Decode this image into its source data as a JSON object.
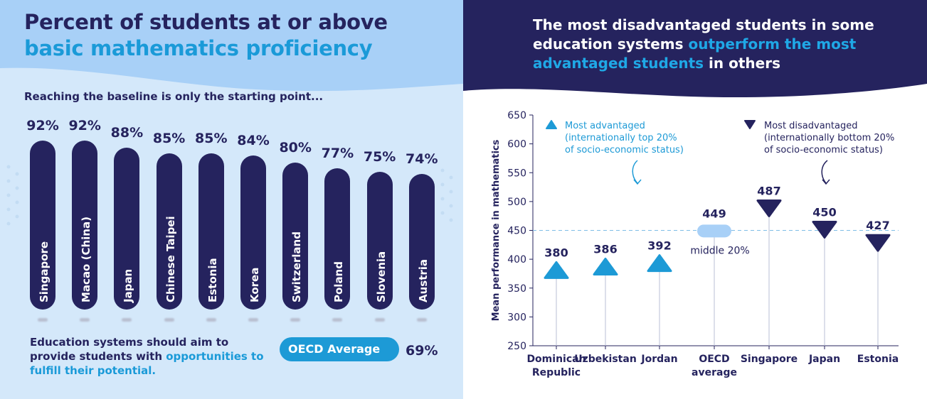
{
  "left": {
    "title_line1": "Percent of students at or above",
    "title_line2": "basic mathematics proficiency",
    "subtitle": "Reaching the baseline is only the starting point...",
    "bottom_text_1": "Education systems should aim to provide students with ",
    "bottom_text_highlight": "opportunities to fulfill their potential.",
    "oecd_label": "OECD Average",
    "oecd_value": "69%"
  },
  "right": {
    "title_part1": "The most disadvantaged students in some education systems ",
    "title_highlight": "outperform the most advantaged students",
    "title_part2": " in others"
  },
  "chart_data": [
    {
      "type": "bar",
      "title": "Percent of students at or above basic mathematics proficiency",
      "categories": [
        "Singapore",
        "Macao (China)",
        "Japan",
        "Chinese Taipei",
        "Estonia",
        "Korea",
        "Switzerland",
        "Poland",
        "Slovenia",
        "Austria"
      ],
      "values": [
        92,
        92,
        88,
        85,
        85,
        84,
        80,
        77,
        75,
        74
      ],
      "labels": [
        "92%",
        "92%",
        "88%",
        "85%",
        "85%",
        "84%",
        "80%",
        "77%",
        "75%",
        "74%"
      ],
      "reference": {
        "name": "OECD Average",
        "value": 69
      }
    },
    {
      "type": "scatter",
      "title": "The most disadvantaged students in some education systems outperform the most advantaged students in others",
      "ylabel": "Mean performance in mathematics",
      "ylim": [
        250,
        650
      ],
      "yticks": [
        250,
        300,
        350,
        400,
        450,
        500,
        550,
        600,
        650
      ],
      "reference_line": 450,
      "categories": [
        "Dominican Republic",
        "Uzbekistan",
        "Jordan",
        "OECD average",
        "Singapore",
        "Japan",
        "Estonia"
      ],
      "category_lines": [
        [
          "Dominican",
          "Republic"
        ],
        [
          "Uzbekistan"
        ],
        [
          "Jordan"
        ],
        [
          "OECD",
          "average"
        ],
        [
          "Singapore"
        ],
        [
          "Japan"
        ],
        [
          "Estonia"
        ]
      ],
      "points": [
        {
          "category": "Dominican Republic",
          "group": "Most advantaged",
          "value": 380,
          "label": "380"
        },
        {
          "category": "Uzbekistan",
          "group": "Most advantaged",
          "value": 386,
          "label": "386"
        },
        {
          "category": "Jordan",
          "group": "Most advantaged",
          "value": 392,
          "label": "392"
        },
        {
          "category": "OECD average",
          "group": "middle 20%",
          "value": 449,
          "label": "449"
        },
        {
          "category": "Singapore",
          "group": "Most disadvantaged",
          "value": 487,
          "label": "487"
        },
        {
          "category": "Japan",
          "group": "Most disadvantaged",
          "value": 450,
          "label": "450"
        },
        {
          "category": "Estonia",
          "group": "Most disadvantaged",
          "value": 427,
          "label": "427"
        }
      ],
      "middle_label": "middle 20%",
      "legend": [
        {
          "name": "Most advantaged",
          "marker": "triangle-up",
          "color": "#1d9ad6",
          "desc_lines": [
            "(internationally top 20%",
            "of socio-economic status)"
          ]
        },
        {
          "name": "Most disadvantaged",
          "marker": "triangle-down",
          "color": "#25235e",
          "desc_lines": [
            "(internationally bottom 20%",
            "of socio-economic status)"
          ]
        }
      ]
    }
  ]
}
